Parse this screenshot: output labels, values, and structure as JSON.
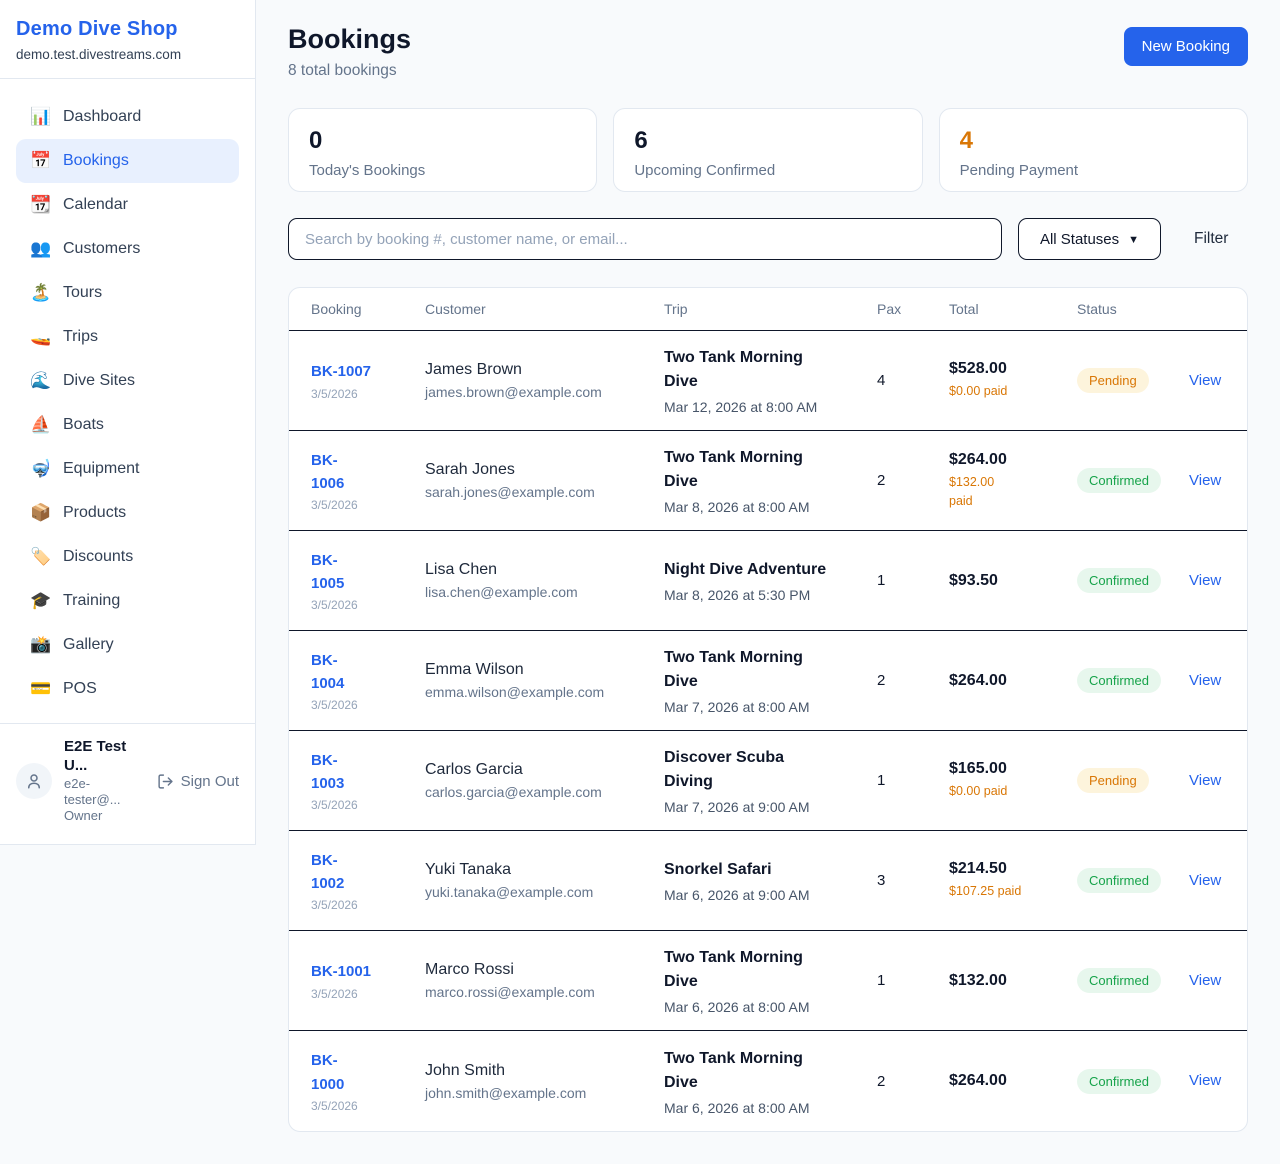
{
  "colors": {
    "accent_blue": "#2563eb",
    "orange": "#d97706",
    "green": "#16a34a",
    "pending_badge_bg": "#fdf4dc",
    "confirmed_badge_bg": "#e7f7ed",
    "dark_border": "#0f172a",
    "light_border": "#e2e8f0",
    "page_bg": "#f8fafc"
  },
  "sidebar": {
    "shop_name": "Demo Dive Shop",
    "domain": "demo.test.divestreams.com",
    "items": [
      {
        "label": "Dashboard",
        "icon": "📊",
        "active": false
      },
      {
        "label": "Bookings",
        "icon": "📅",
        "active": true
      },
      {
        "label": "Calendar",
        "icon": "📆",
        "active": false
      },
      {
        "label": "Customers",
        "icon": "👥",
        "active": false
      },
      {
        "label": "Tours",
        "icon": "🏝️",
        "active": false
      },
      {
        "label": "Trips",
        "icon": "🚤",
        "active": false
      },
      {
        "label": "Dive Sites",
        "icon": "🌊",
        "active": false
      },
      {
        "label": "Boats",
        "icon": "⛵",
        "active": false
      },
      {
        "label": "Equipment",
        "icon": "🤿",
        "active": false
      },
      {
        "label": "Products",
        "icon": "📦",
        "active": false
      },
      {
        "label": "Discounts",
        "icon": "🏷️",
        "active": false
      },
      {
        "label": "Training",
        "icon": "🎓",
        "active": false
      },
      {
        "label": "Gallery",
        "icon": "📸",
        "active": false
      },
      {
        "label": "POS",
        "icon": "💳",
        "active": false
      }
    ],
    "user": {
      "name": "E2E Test U...",
      "email": "e2e-tester@...",
      "role": "Owner",
      "sign_out_label": "Sign Out"
    }
  },
  "header": {
    "title": "Bookings",
    "subtitle": "8 total bookings",
    "new_booking_label": "New Booking"
  },
  "stats": {
    "cards": [
      {
        "value": "0",
        "label": "Today's Bookings",
        "accent": "dark"
      },
      {
        "value": "6",
        "label": "Upcoming Confirmed",
        "accent": "dark"
      },
      {
        "value": "4",
        "label": "Pending Payment",
        "accent": "orange"
      }
    ]
  },
  "filters": {
    "search_placeholder": "Search by booking #, customer name, or email...",
    "status_selected": "All Statuses",
    "filter_label": "Filter"
  },
  "table": {
    "columns": [
      "Booking",
      "Customer",
      "Trip",
      "Pax",
      "Total",
      "Status"
    ],
    "view_label": "View",
    "rows": [
      {
        "id": "BK-1007",
        "date": "3/5/2026",
        "customer": "James Brown",
        "email": "james.brown@example.com",
        "trip": "Two Tank Morning\nDive",
        "trip_date": "Mar 12, 2026 at 8:00 AM",
        "pax": "4",
        "total": "$528.00",
        "paid": "$0.00 paid",
        "status": "Pending"
      },
      {
        "id": "BK-\n1006",
        "date": "3/5/2026",
        "customer": "Sarah Jones",
        "email": "sarah.jones@example.com",
        "trip": "Two Tank Morning\nDive",
        "trip_date": "Mar 8, 2026 at 8:00 AM",
        "pax": "2",
        "total": "$264.00",
        "paid": "$132.00\npaid",
        "status": "Confirmed"
      },
      {
        "id": "BK-\n1005",
        "date": "3/5/2026",
        "customer": "Lisa Chen",
        "email": "lisa.chen@example.com",
        "trip": "Night Dive Adventure",
        "trip_date": "Mar 8, 2026 at 5:30 PM",
        "pax": "1",
        "total": "$93.50",
        "paid": "",
        "status": "Confirmed"
      },
      {
        "id": "BK-\n1004",
        "date": "3/5/2026",
        "customer": "Emma Wilson",
        "email": "emma.wilson@example.com",
        "trip": "Two Tank Morning\nDive",
        "trip_date": "Mar 7, 2026 at 8:00 AM",
        "pax": "2",
        "total": "$264.00",
        "paid": "",
        "status": "Confirmed"
      },
      {
        "id": "BK-\n1003",
        "date": "3/5/2026",
        "customer": "Carlos Garcia",
        "email": "carlos.garcia@example.com",
        "trip": "Discover Scuba\nDiving",
        "trip_date": "Mar 7, 2026 at 9:00 AM",
        "pax": "1",
        "total": "$165.00",
        "paid": "$0.00 paid",
        "status": "Pending"
      },
      {
        "id": "BK-\n1002",
        "date": "3/5/2026",
        "customer": "Yuki Tanaka",
        "email": "yuki.tanaka@example.com",
        "trip": "Snorkel Safari",
        "trip_date": "Mar 6, 2026 at 9:00 AM",
        "pax": "3",
        "total": "$214.50",
        "paid": "$107.25 paid",
        "status": "Confirmed"
      },
      {
        "id": "BK-1001",
        "date": "3/5/2026",
        "customer": "Marco Rossi",
        "email": "marco.rossi@example.com",
        "trip": "Two Tank Morning\nDive",
        "trip_date": "Mar 6, 2026 at 8:00 AM",
        "pax": "1",
        "total": "$132.00",
        "paid": "",
        "status": "Confirmed"
      },
      {
        "id": "BK-\n1000",
        "date": "3/5/2026",
        "customer": "John Smith",
        "email": "john.smith@example.com",
        "trip": "Two Tank Morning\nDive",
        "trip_date": "Mar 6, 2026 at 8:00 AM",
        "pax": "2",
        "total": "$264.00",
        "paid": "",
        "status": "Confirmed"
      }
    ]
  }
}
